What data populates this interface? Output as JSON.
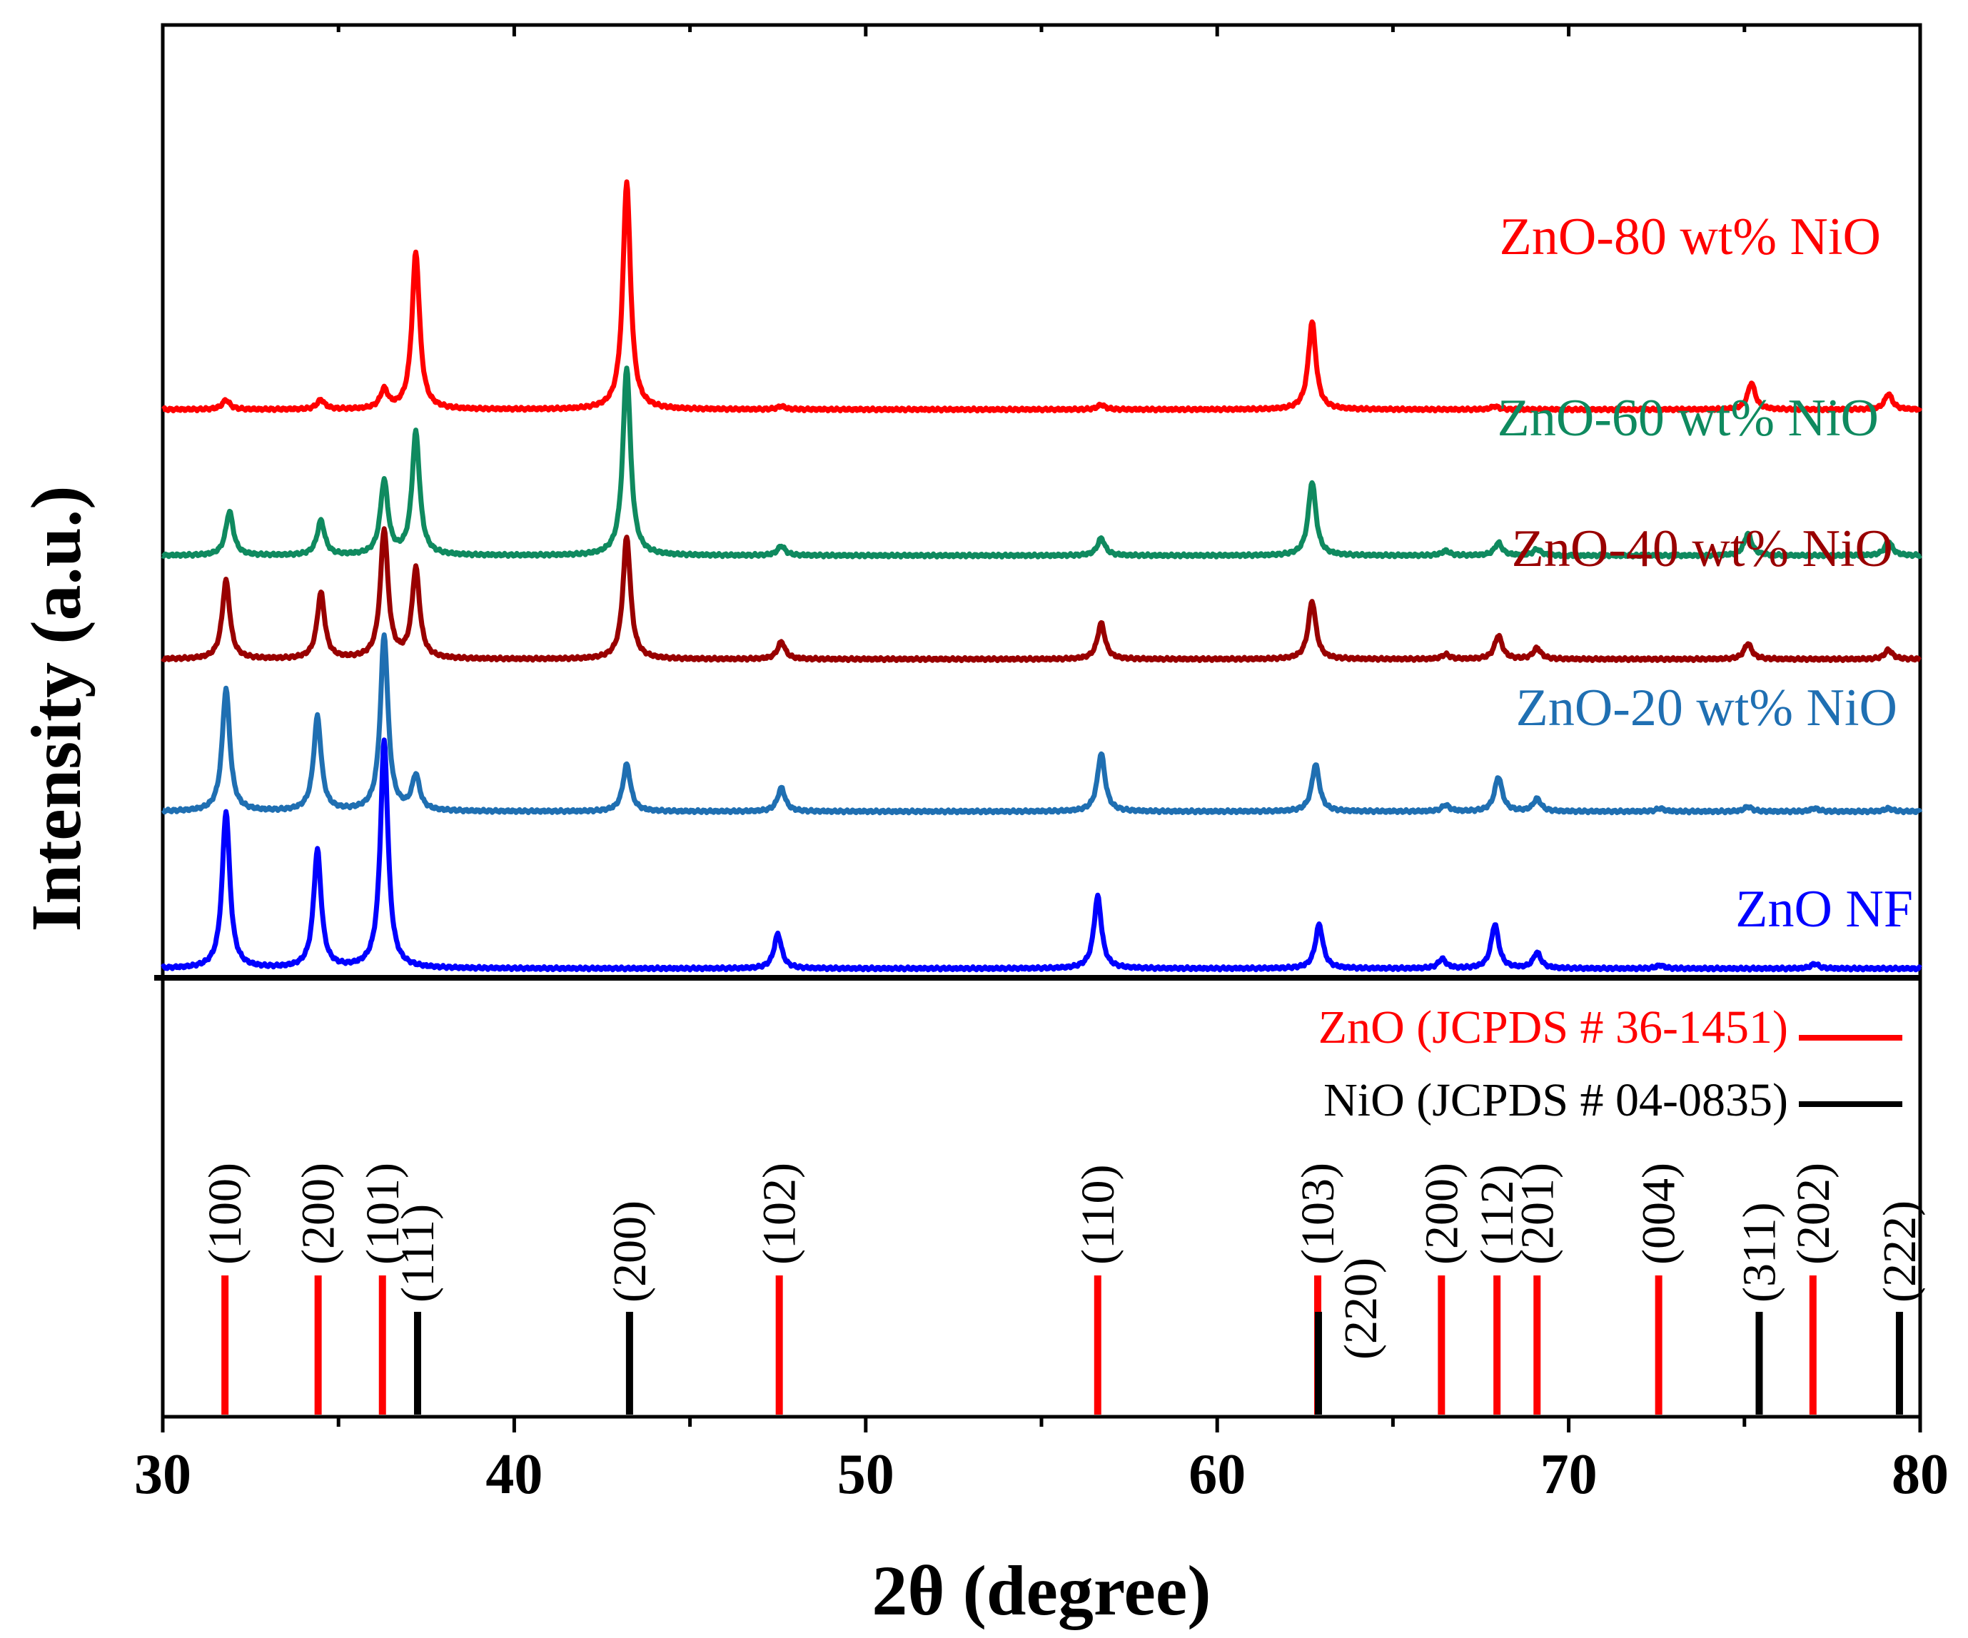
{
  "chart_data": {
    "type": "line",
    "xlabel": "2θ (degree)",
    "ylabel": "Intensity (a.u.)",
    "xlim": [
      30,
      80
    ],
    "x_ticks": [
      30,
      40,
      50,
      60,
      70,
      80
    ],
    "x_minor_step": 5,
    "series": [
      {
        "name": "ZnO NF",
        "color": "#0000ff",
        "baseline": 0.0,
        "peaks": [
          [
            31.8,
            1.0
          ],
          [
            34.4,
            0.75
          ],
          [
            36.3,
            1.45
          ],
          [
            47.5,
            0.22
          ],
          [
            56.6,
            0.46
          ],
          [
            62.9,
            0.28
          ],
          [
            66.4,
            0.06
          ],
          [
            67.9,
            0.28
          ],
          [
            69.1,
            0.1
          ],
          [
            72.6,
            0.02
          ],
          [
            77.0,
            0.03
          ]
        ]
      },
      {
        "name": "ZnO-20 wt% NiO",
        "color": "#1f6fb2",
        "baseline": 1.0,
        "peaks": [
          [
            31.8,
            0.78
          ],
          [
            34.4,
            0.6
          ],
          [
            36.3,
            1.12
          ],
          [
            37.2,
            0.22
          ],
          [
            43.2,
            0.3
          ],
          [
            47.6,
            0.15
          ],
          [
            56.7,
            0.37
          ],
          [
            62.8,
            0.3
          ],
          [
            66.5,
            0.04
          ],
          [
            68.0,
            0.22
          ],
          [
            69.1,
            0.08
          ],
          [
            72.6,
            0.02
          ],
          [
            75.1,
            0.03
          ],
          [
            77.0,
            0.02
          ],
          [
            79.1,
            0.02
          ]
        ]
      },
      {
        "name": "ZnO-40 wt% NiO",
        "color": "#990000",
        "baseline": 1.97,
        "peaks": [
          [
            31.8,
            0.5
          ],
          [
            34.5,
            0.42
          ],
          [
            36.3,
            0.82
          ],
          [
            37.2,
            0.57
          ],
          [
            43.2,
            0.78
          ],
          [
            47.6,
            0.11
          ],
          [
            56.7,
            0.23
          ],
          [
            62.7,
            0.37
          ],
          [
            66.5,
            0.03
          ],
          [
            68.0,
            0.15
          ],
          [
            69.1,
            0.07
          ],
          [
            75.1,
            0.1
          ],
          [
            79.1,
            0.06
          ]
        ]
      },
      {
        "name": "ZnO-60 wt% NiO",
        "color": "#0f8a5f",
        "baseline": 2.63,
        "peaks": [
          [
            31.9,
            0.28
          ],
          [
            34.5,
            0.22
          ],
          [
            36.3,
            0.47
          ],
          [
            37.2,
            0.78
          ],
          [
            43.2,
            1.2
          ],
          [
            47.6,
            0.06
          ],
          [
            56.7,
            0.11
          ],
          [
            62.7,
            0.47
          ],
          [
            66.5,
            0.03
          ],
          [
            68.0,
            0.08
          ],
          [
            69.1,
            0.04
          ],
          [
            75.1,
            0.14
          ],
          [
            79.1,
            0.09
          ]
        ]
      },
      {
        "name": "ZnO-80 wt% NiO",
        "color": "#ff0000",
        "baseline": 3.56,
        "peaks": [
          [
            31.8,
            0.06
          ],
          [
            34.5,
            0.06
          ],
          [
            36.3,
            0.12
          ],
          [
            37.2,
            1.0
          ],
          [
            43.2,
            1.45
          ],
          [
            47.6,
            0.02
          ],
          [
            56.7,
            0.03
          ],
          [
            62.7,
            0.56
          ],
          [
            67.9,
            0.02
          ],
          [
            75.2,
            0.17
          ],
          [
            79.1,
            0.1
          ]
        ]
      }
    ],
    "reference": {
      "legend": [
        {
          "label": "ZnO (JCPDS # 36-1451)",
          "color": "#ff0000"
        },
        {
          "label": "NiO (JCPDS # 04-0835)",
          "color": "#000000"
        }
      ],
      "zno_lines": [
        {
          "x": 31.77,
          "hkl": "(100)"
        },
        {
          "x": 34.42,
          "hkl": "(200)"
        },
        {
          "x": 36.25,
          "hkl": "(101)"
        },
        {
          "x": 47.54,
          "hkl": "(102)"
        },
        {
          "x": 56.6,
          "hkl": "(110)"
        },
        {
          "x": 62.86,
          "hkl": "(103)"
        },
        {
          "x": 66.38,
          "hkl": "(200)"
        },
        {
          "x": 67.96,
          "hkl": "(112)"
        },
        {
          "x": 69.1,
          "hkl": "(201)"
        },
        {
          "x": 72.56,
          "hkl": "(004)"
        },
        {
          "x": 76.95,
          "hkl": "(202)"
        }
      ],
      "nio_lines": [
        {
          "x": 37.25,
          "hkl": "(111)"
        },
        {
          "x": 43.28,
          "hkl": "(200)"
        },
        {
          "x": 62.88,
          "hkl": "(220)"
        },
        {
          "x": 75.42,
          "hkl": "(311)"
        },
        {
          "x": 79.41,
          "hkl": "(222)"
        }
      ]
    }
  }
}
